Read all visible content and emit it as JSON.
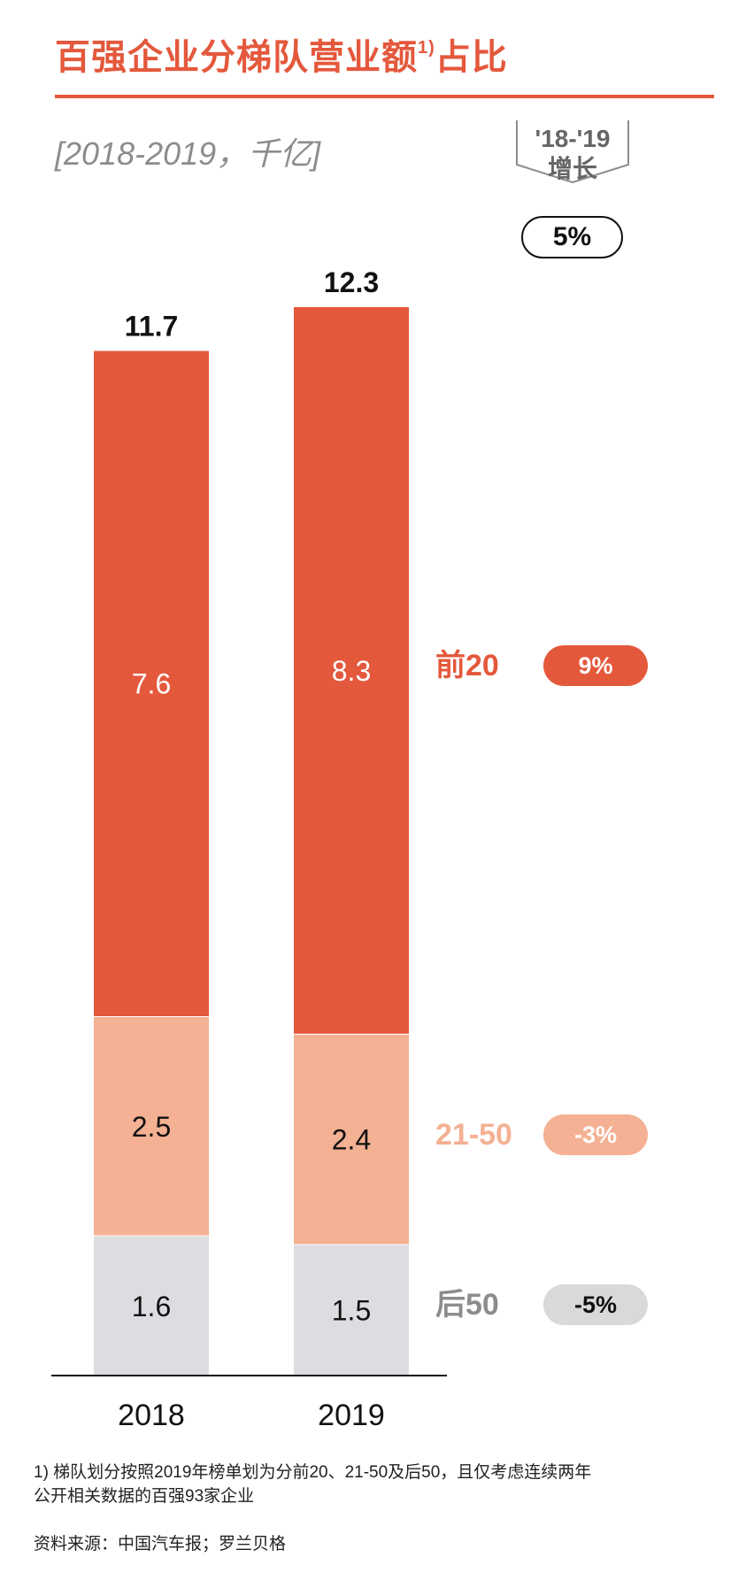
{
  "title": "百强企业分梯队营业额",
  "title_sup": "1)",
  "title_suffix": "占比",
  "subtitle": "[2018-2019，千亿]",
  "growth_header": {
    "line1": "'18-'19",
    "line2": "增长"
  },
  "total_growth": "5%",
  "colors": {
    "accent": "#e4583c",
    "top20": "#e4583c",
    "mid": "#f4b193",
    "bottom": "#dcdde0",
    "pill_bottom": "#d9d9db"
  },
  "chart_data": {
    "type": "bar",
    "stacked": true,
    "categories": [
      "2018",
      "2019"
    ],
    "series": [
      {
        "name": "后50",
        "values": [
          1.6,
          1.5
        ],
        "growth": "-5%"
      },
      {
        "name": "21-50",
        "values": [
          2.5,
          2.4
        ],
        "growth": "-3%"
      },
      {
        "name": "前20",
        "values": [
          7.6,
          8.3
        ],
        "growth": "9%"
      }
    ],
    "totals": [
      11.7,
      12.3
    ],
    "value_labels": [
      [
        "1.6",
        "2.5",
        "7.6"
      ],
      [
        "1.5",
        "2.4",
        "8.3"
      ]
    ],
    "total_labels": [
      "11.7",
      "12.3"
    ],
    "ylim": [
      0,
      12.3
    ],
    "legend": "right",
    "grid": false
  },
  "footnote": {
    "line1": "1) 梯队划分按照2019年榜单划为分前20、21-50及后50，且仅考虑连续两年",
    "line2": "公开相关数据的百强93家企业"
  },
  "source": "资料来源：中国汽车报；罗兰贝格"
}
